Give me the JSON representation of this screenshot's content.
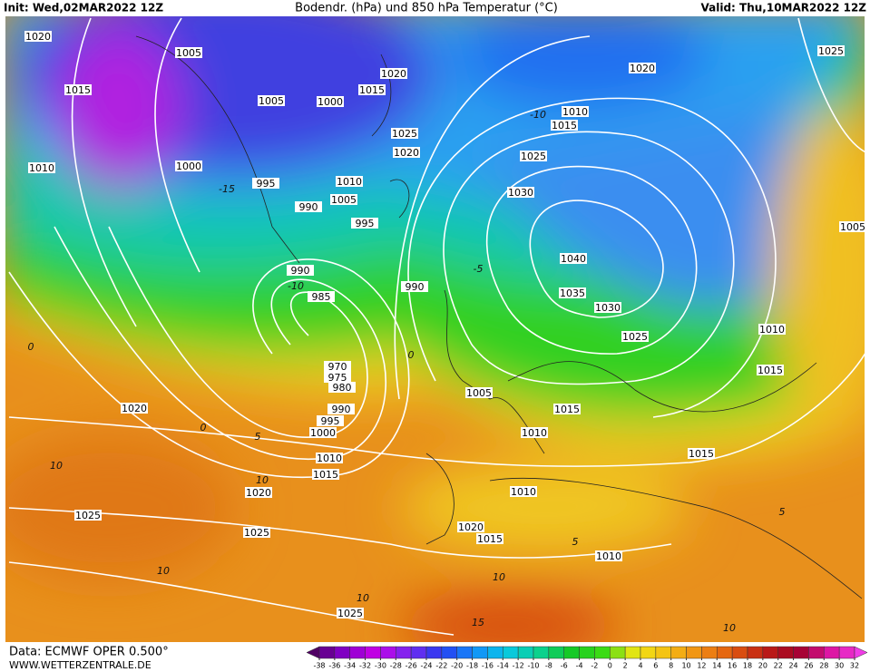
{
  "header": {
    "init": "Init: Wed,02MAR2022 12Z",
    "title": "Bodendr. (hPa) und 850 hPa Temperatur (°C)",
    "valid": "Valid: Thu,10MAR2022 12Z"
  },
  "footer": {
    "source": "Data: ECMWF OPER 0.500°",
    "website": "WWW.WETTERZENTRALE.DE"
  },
  "colorbar": {
    "ticks": [
      -38,
      -36,
      -34,
      -32,
      -30,
      -28,
      -26,
      -24,
      -22,
      -20,
      -18,
      -16,
      -14,
      -12,
      -10,
      -8,
      -6,
      -4,
      -2,
      0,
      2,
      4,
      6,
      8,
      10,
      12,
      14,
      16,
      18,
      20,
      22,
      24,
      26,
      28,
      30,
      32
    ]
  },
  "isobar_labels": [
    1020,
    1005,
    1015,
    1005,
    1000,
    1015,
    1020,
    1010,
    1000,
    995,
    990,
    1010,
    1005,
    995,
    1025,
    1020,
    1020,
    1010,
    1015,
    1025,
    1030,
    1040,
    1035,
    1030,
    1025,
    1025,
    1010,
    1015,
    985,
    990,
    990,
    970,
    975,
    980,
    990,
    995,
    1000,
    1005,
    1015,
    1010,
    1010,
    1015,
    1020,
    1020,
    1025,
    1025,
    1010,
    1020,
    1015,
    1010,
    1015,
    1025,
    1005
  ],
  "temperature_labels": [
    -10,
    -15,
    -10,
    0,
    0,
    5,
    10,
    10,
    10,
    10,
    15,
    10,
    5,
    5,
    10,
    -5,
    0
  ]
}
